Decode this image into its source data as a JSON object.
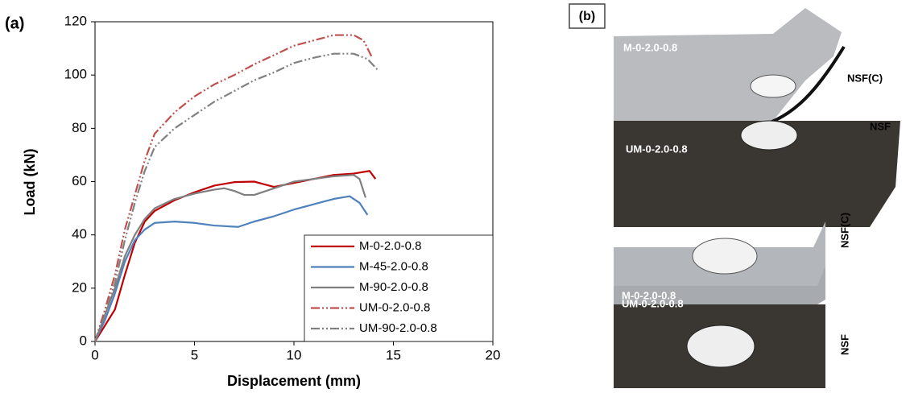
{
  "chart_data": {
    "type": "line",
    "panel_label": "(a)",
    "xlabel": "Displacement (mm)",
    "ylabel": "Load (kN)",
    "xlim": [
      0,
      20
    ],
    "ylim": [
      0,
      120
    ],
    "xticks": [
      0,
      5,
      10,
      15,
      20
    ],
    "yticks": [
      0,
      20,
      40,
      60,
      80,
      100,
      120
    ],
    "grid": false,
    "legend": "lower right",
    "series": [
      {
        "name": "M-0-2.0-0.8",
        "color": "#c00000",
        "style": "solid",
        "x": [
          0,
          1,
          1.5,
          2,
          2.5,
          3,
          4,
          5,
          6,
          7,
          8,
          8.5,
          9,
          10,
          11,
          12,
          13,
          13.8,
          14.1
        ],
        "values": [
          0,
          12,
          25,
          37,
          45,
          49,
          53,
          56,
          58.5,
          59.8,
          60,
          59,
          58,
          59.5,
          61,
          62.5,
          63,
          64,
          61
        ]
      },
      {
        "name": "M-45-2.0-0.8",
        "color": "#4f81bd",
        "style": "solid",
        "x": [
          0,
          0.5,
          1,
          1.5,
          2,
          2.5,
          3,
          4,
          5,
          6,
          7.2,
          8,
          9,
          10,
          11,
          12,
          12.8,
          13.3,
          13.7
        ],
        "values": [
          0,
          8,
          18,
          30,
          38,
          42,
          44.5,
          45,
          44.5,
          43.5,
          43,
          45,
          47,
          49.5,
          51.5,
          53.5,
          54.5,
          52,
          47.5
        ]
      },
      {
        "name": "M-90-2.0-0.8",
        "color": "#7f7f7f",
        "style": "solid",
        "x": [
          0,
          0.5,
          1,
          1.5,
          2,
          2.5,
          3,
          4,
          5,
          6,
          6.5,
          7,
          7.5,
          8,
          9,
          10,
          11,
          12,
          13,
          13.3,
          13.6
        ],
        "values": [
          0,
          10,
          20,
          32,
          40,
          46,
          50,
          53.5,
          55.5,
          57,
          57.5,
          56.5,
          55,
          55,
          57.5,
          60,
          61,
          62,
          62.5,
          61,
          54
        ]
      },
      {
        "name": "UM-0-2.0-0.8",
        "color": "#c0504d",
        "style": "dash-dot-dot",
        "x": [
          0,
          0.5,
          1,
          1.5,
          2,
          2.5,
          3,
          4,
          5,
          6,
          7,
          8,
          9,
          10,
          11,
          12,
          13,
          13.5,
          13.9
        ],
        "values": [
          0,
          12,
          25,
          42,
          55,
          68,
          78,
          86,
          92,
          96.5,
          100,
          104,
          107.5,
          111,
          113,
          115,
          115,
          113,
          107
        ]
      },
      {
        "name": "UM-90-2.0-0.8",
        "color": "#808080",
        "style": "dash-dot-dot",
        "x": [
          0,
          0.5,
          1,
          1.5,
          2,
          2.5,
          3,
          4,
          5,
          6,
          7,
          8,
          9,
          10,
          11,
          12,
          13,
          13.7,
          14.2
        ],
        "values": [
          0,
          10,
          22,
          38,
          52,
          64,
          73,
          80,
          85,
          90,
          94,
          98,
          101,
          104.5,
          106.5,
          108,
          108,
          106,
          102
        ]
      }
    ]
  },
  "panel_b": {
    "label": "(b)",
    "top_photo": {
      "upper_label": "M-0-2.0-0.8",
      "upper_tag": "NSF(C)",
      "lower_label": "UM-0-2.0-0.8",
      "lower_tag": "NSF"
    },
    "bottom_photo": {
      "upper_label": "M-0-2.0-0.8",
      "upper_tag": "NSF(C)",
      "lower_label": "UM-0-2.0-0.8",
      "lower_tag": "NSF"
    }
  }
}
